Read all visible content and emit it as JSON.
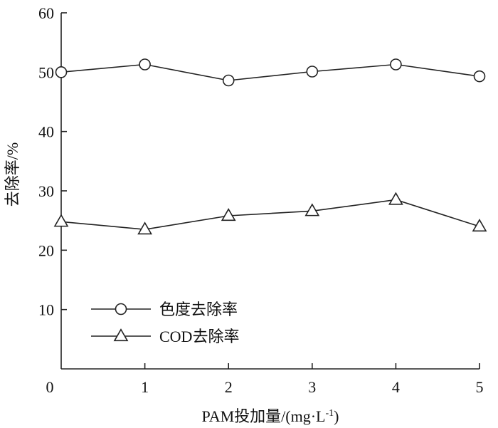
{
  "chart_data": {
    "type": "line",
    "xlabel": "PAM投加量/(mg·L",
    "xlabel_sup": "-1",
    "xlabel_close": ")",
    "ylabel": "去除率/%",
    "x": [
      0,
      1,
      2,
      3,
      4,
      5
    ],
    "xlim": [
      0,
      5
    ],
    "ylim": [
      0,
      60
    ],
    "xticks": [
      "0",
      "1",
      "2",
      "3",
      "4",
      "5"
    ],
    "yticks": [
      "10",
      "20",
      "30",
      "40",
      "50",
      "60"
    ],
    "grid": false,
    "legend_position": "bottom-left",
    "series": [
      {
        "name": "色度去除率",
        "marker": "circle",
        "values": [
          50.0,
          51.3,
          48.6,
          50.1,
          51.3,
          49.3
        ]
      },
      {
        "name": "COD去除率",
        "marker": "triangle",
        "values": [
          24.8,
          23.5,
          25.8,
          26.6,
          28.5,
          24.0
        ]
      }
    ]
  }
}
